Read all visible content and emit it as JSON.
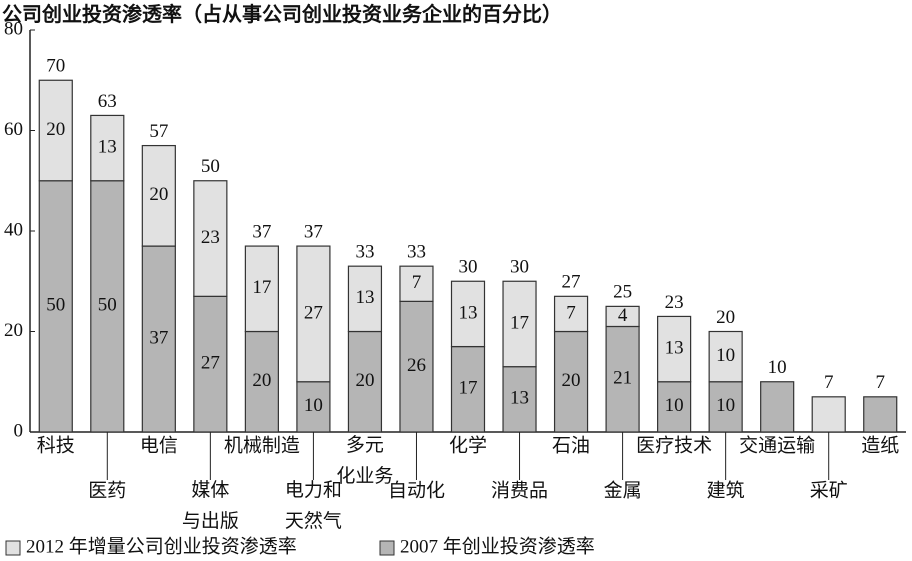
{
  "chart_data": {
    "type": "stacked_bar",
    "title": "公司创业投资渗透率（占从事公司创业投资业务企业的百分比）",
    "categories": [
      "科技",
      "医药",
      "电信",
      "媒体与出版",
      "机械制造",
      "电力和天然气",
      "多元化业务",
      "自动化",
      "化学",
      "消费品",
      "石油",
      "金属",
      "医疗技术",
      "建筑",
      "交通运输",
      "采矿",
      "造纸"
    ],
    "series": [
      {
        "name": "2007 年创业投资渗透率",
        "color": "#b5b5b5",
        "values": [
          50,
          50,
          37,
          27,
          20,
          10,
          20,
          26,
          17,
          13,
          20,
          21,
          10,
          10,
          10,
          null,
          7
        ]
      },
      {
        "name": "2012 年增量公司创业投资渗透率",
        "color": "#e1e1e1",
        "values": [
          20,
          13,
          20,
          23,
          17,
          27,
          13,
          7,
          13,
          17,
          7,
          4,
          13,
          10,
          null,
          7,
          null
        ]
      }
    ],
    "totals": [
      70,
      63,
      57,
      50,
      37,
      37,
      33,
      33,
      30,
      30,
      27,
      25,
      23,
      20,
      10,
      7,
      7
    ],
    "ylim": [
      0,
      80
    ],
    "yticks": [
      0,
      20,
      40,
      60,
      80
    ],
    "grid": false,
    "legend": "bottom-left"
  }
}
